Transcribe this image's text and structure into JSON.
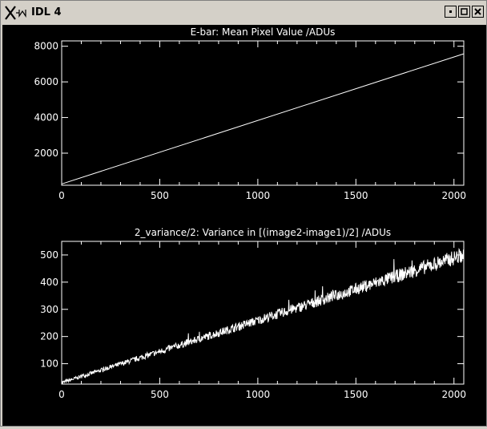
{
  "window": {
    "title": "IDL 4"
  },
  "colors": {
    "background": "#000000",
    "foreground": "#ffffff",
    "chrome": "#d4d0c8"
  },
  "icons": {
    "app": "x-logo-icon",
    "minimize": "minimize-icon",
    "maximize": "maximize-icon",
    "close": "close-icon"
  },
  "chart_data": [
    {
      "type": "line",
      "title": "E-bar:  Mean Pixel Value  /ADUs",
      "xlim": [
        0,
        2050
      ],
      "ylim": [
        200,
        8300
      ],
      "xticks": [
        0,
        500,
        1000,
        1500,
        2000
      ],
      "yticks": [
        2000,
        4000,
        6000,
        8000
      ],
      "grid": false,
      "series": [
        {
          "x": [
            0,
            2048
          ],
          "values": [
            270,
            7570
          ]
        }
      ]
    },
    {
      "type": "line",
      "title": "2_variance/2:  Variance in [(image2-image1)/2]  /ADUs",
      "xlim": [
        0,
        2050
      ],
      "ylim": [
        25,
        550
      ],
      "xticks": [
        0,
        500,
        1000,
        1500,
        2000
      ],
      "yticks": [
        100,
        200,
        300,
        400,
        500
      ],
      "grid": false,
      "noisy": true,
      "series": [
        {
          "x": [
            0,
            2048
          ],
          "values": [
            30,
            500
          ]
        }
      ]
    }
  ]
}
